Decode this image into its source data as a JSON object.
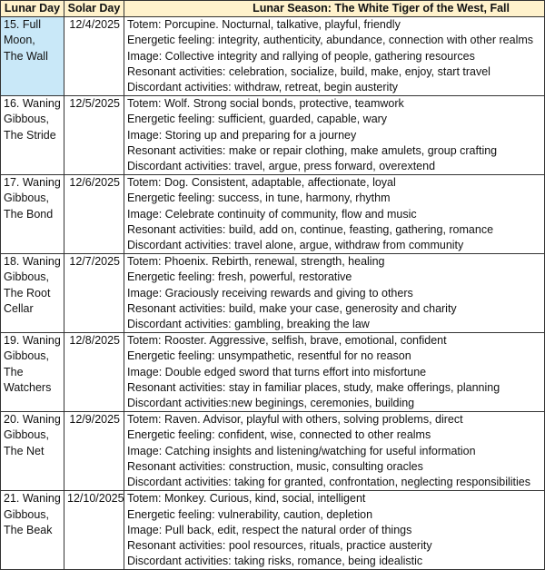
{
  "headers": {
    "lunar_day": "Lunar Day",
    "solar_day": "Solar Day",
    "season": "Lunar Season: The White Tiger of the West, Fall"
  },
  "highlight_color": "#C9E8F8",
  "header_color": "#FFF2CC",
  "rows": [
    {
      "lunar": [
        "15. Full",
        "Moon,",
        "The Wall"
      ],
      "solar": "12/4/2025",
      "lines": [
        "Totem: Porcupine. Nocturnal, talkative, playful, friendly",
        "Energetic feeling: integrity, authenticity, abundance, connection with other realms",
        "Image: Collective integrity and rallying of people, gathering resources",
        "Resonant activities: celebration, socialize, build, make, enjoy, start travel",
        "Discordant activities: withdraw, retreat, begin austerity"
      ]
    },
    {
      "lunar": [
        "16. Waning",
        "Gibbous,",
        "The Stride"
      ],
      "solar": "12/5/2025",
      "lines": [
        "Totem: Wolf. Strong social bonds, protective, teamwork",
        "Energetic feeling: sufficient, guarded, capable, wary",
        "Image: Storing up and preparing for a journey",
        "Resonant activities: make or repair clothing, make amulets, group crafting",
        "Discordant activities: travel, argue, press forward, overextend"
      ]
    },
    {
      "lunar": [
        "17. Waning",
        "Gibbous,",
        "The Bond"
      ],
      "solar": "12/6/2025",
      "lines": [
        "Totem: Dog. Consistent, adaptable, affectionate, loyal",
        "Energetic feeling: success, in tune, harmony, rhythm",
        "Image: Celebrate continuity of community, flow and music",
        "Resonant activities: build, add on, continue, feasting, gathering, romance",
        "Discordant activities: travel alone, argue, withdraw from community"
      ]
    },
    {
      "lunar": [
        "18. Waning",
        "Gibbous,",
        "The Root",
        "Cellar"
      ],
      "solar": "12/7/2025",
      "lines": [
        "Totem: Phoenix. Rebirth, renewal, strength, healing",
        "Energetic feeling: fresh, powerful, restorative",
        "Image: Graciously receiving rewards and giving to others",
        "Resonant activities: build, make your case, generosity and charity",
        "Discordant activities: gambling, breaking the law"
      ]
    },
    {
      "lunar": [
        "19. Waning",
        "Gibbous,",
        "The",
        "Watchers"
      ],
      "solar": "12/8/2025",
      "lines": [
        "Totem: Rooster. Aggressive, selfish, brave, emotional, confident",
        "Energetic feeling: unsympathetic, resentful for no reason",
        "Image: Double edged sword that turns effort into misfortune",
        "Resonant activities: stay in familiar places, study, make offerings, planning",
        "Discordant activities:new beginings, ceremonies, building"
      ]
    },
    {
      "lunar": [
        "20. Waning",
        "Gibbous,",
        "The Net"
      ],
      "solar": "12/9/2025",
      "lines": [
        "Totem: Raven. Advisor, playful with others, solving problems, direct",
        "Energetic feeling: confident, wise, connected to other realms",
        "Image: Catching insights and listening/watching for useful information",
        "Resonant activities: construction, music, consulting oracles",
        "Discordant activities: taking for granted, confrontation, neglecting responsibilities"
      ]
    },
    {
      "lunar": [
        "21. Waning",
        "Gibbous,",
        "The Beak"
      ],
      "solar": "12/10/2025",
      "lines": [
        "Totem: Monkey. Curious, kind, social, intelligent",
        "Energetic feeling: vulnerability, caution, depletion",
        "Image: Pull back, edit, respect the natural order of things",
        "Resonant activities: pool resources, rituals, practice austerity",
        "Discordant activities: taking risks, romance, being idealistic"
      ]
    }
  ]
}
